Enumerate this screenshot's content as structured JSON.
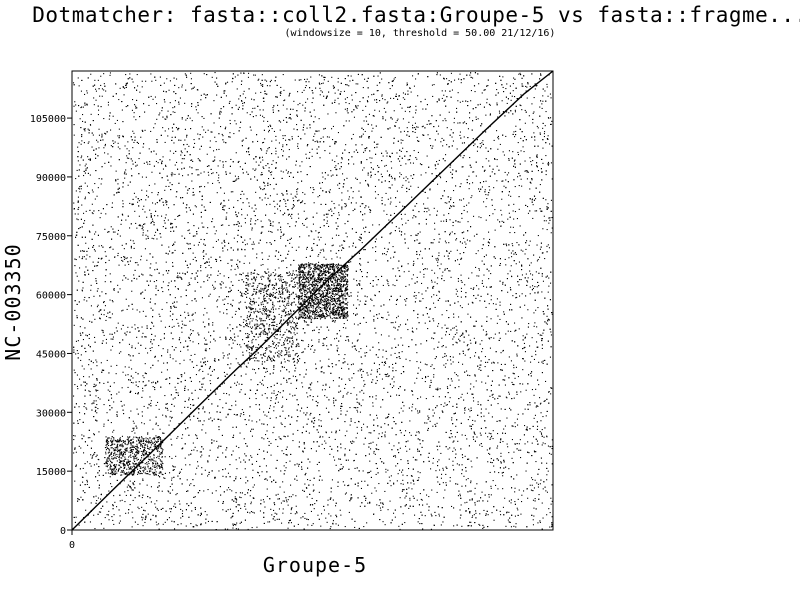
{
  "chart_data": {
    "type": "scatter",
    "title": "Dotmatcher: fasta::coll2.fasta:Groupe-5 vs fasta::fragme...",
    "subtitle": "(windowsize = 10, threshold = 50.00  21/12/16)",
    "xlabel": "Groupe-5",
    "ylabel": "NC-003350",
    "xlim": [
      0,
      117000
    ],
    "ylim": [
      0,
      117000
    ],
    "x_ticks": [
      0
    ],
    "y_ticks": [
      0,
      15000,
      30000,
      45000,
      60000,
      75000,
      90000,
      105000
    ],
    "x_tick_labels": [
      "0"
    ],
    "y_tick_labels": [
      "0",
      "15000",
      "30000",
      "45000",
      "60000",
      "75000",
      "90000",
      "105000"
    ],
    "grid": false,
    "legend": "none",
    "series": [
      {
        "values_description": "main diagonal match line",
        "x": [
          0,
          10000,
          20000,
          30000,
          40000,
          45000,
          50000,
          55000,
          60000,
          65000,
          70000,
          80000,
          90000,
          100000,
          110000,
          117000
        ],
        "y": [
          0,
          10300,
          20500,
          30800,
          41000,
          45800,
          51000,
          56200,
          61500,
          66400,
          71200,
          81200,
          91300,
          101400,
          111200,
          117000
        ]
      }
    ],
    "dense_regions": [
      {
        "x": [
          55000,
          67000
        ],
        "y": [
          54000,
          68000
        ],
        "density": "high"
      },
      {
        "x": [
          42000,
          55000
        ],
        "y": [
          43000,
          66000
        ],
        "density": "medium"
      },
      {
        "x": [
          8000,
          22000
        ],
        "y": [
          14000,
          24000
        ],
        "density": "medium"
      }
    ],
    "colors": {
      "background": "#ffffff",
      "points": "#000000",
      "axes": "#000000"
    }
  }
}
